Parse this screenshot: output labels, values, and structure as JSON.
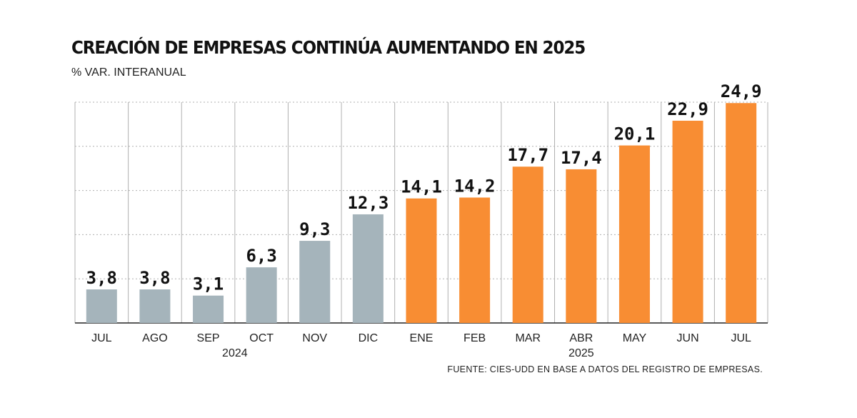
{
  "title": "CREACIÓN DE EMPRESAS CONTINÚA AUMENTANDO EN 2025",
  "subtitle": "% VAR. INTERANUAL",
  "source": "FUENTE: CIES-UDD EN BASE A DATOS DEL REGISTRO DE EMPRESAS.",
  "chart_data": {
    "type": "bar",
    "title": "CREACIÓN DE EMPRESAS CONTINÚA AUMENTANDO EN 2025",
    "ylabel": "% VAR. INTERANUAL",
    "xlabel": "",
    "categories": [
      "JUL",
      "AGO",
      "SEP",
      "OCT",
      "NOV",
      "DIC",
      "ENE",
      "FEB",
      "MAR",
      "ABR",
      "MAY",
      "JUN",
      "JUL"
    ],
    "values": [
      3.8,
      3.8,
      3.1,
      6.3,
      9.3,
      12.3,
      14.1,
      14.2,
      17.7,
      17.4,
      20.1,
      22.9,
      24.9
    ],
    "value_labels": [
      "3,8",
      "3,8",
      "3,1",
      "6,3",
      "9,3",
      "12,3",
      "14,1",
      "14,2",
      "17,7",
      "17,4",
      "20,1",
      "22,9",
      "24,9"
    ],
    "year_groups": [
      {
        "label": "2024",
        "from": 0,
        "to": 5
      },
      {
        "label": "2025",
        "from": 6,
        "to": 12
      }
    ],
    "ylim": [
      0,
      25
    ],
    "grid": true,
    "colors": {
      "2024": "#a5b4bb",
      "2025": "#f88d33",
      "grid": "#b0b0b0",
      "axis": "#222222"
    }
  }
}
